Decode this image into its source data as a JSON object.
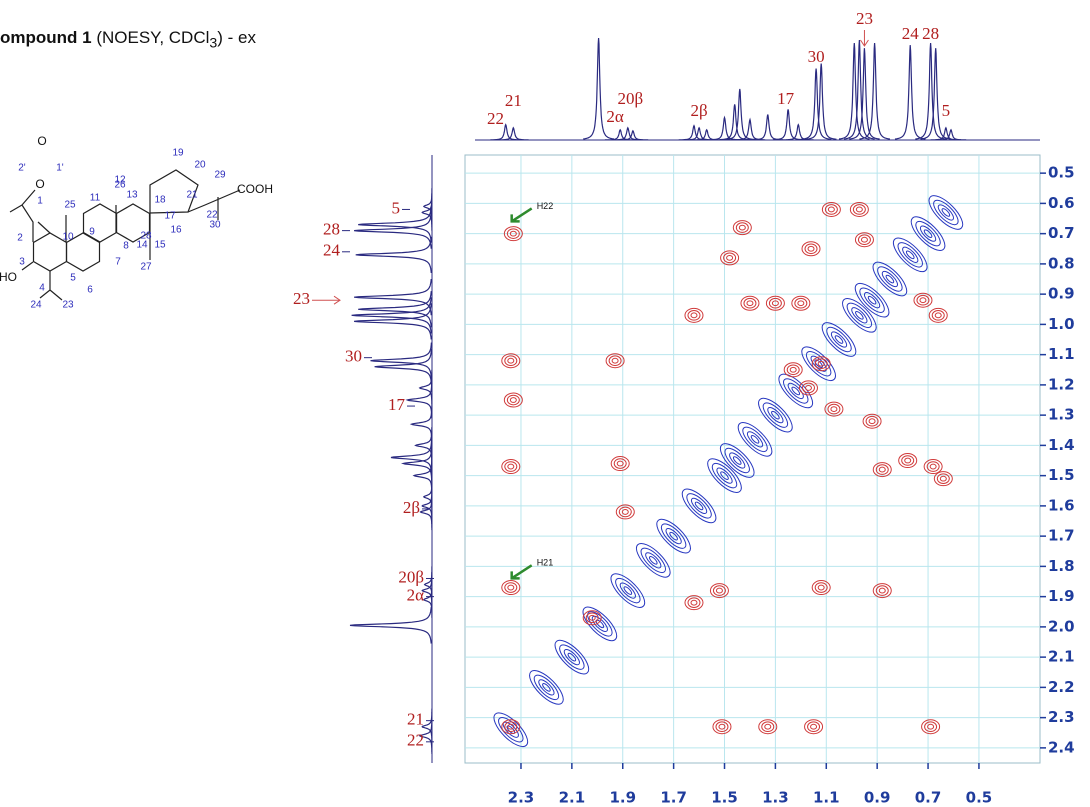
{
  "chart_data": {
    "type": "noesy",
    "title": {
      "prefix": "ompound 1",
      "main": " (NOESY, CDCl",
      "sub": "3",
      "suffix": ") - ex"
    },
    "xlim": [
      2.52,
      0.26
    ],
    "ylim": [
      0.44,
      2.45
    ],
    "xticks": [
      2.3,
      2.1,
      1.9,
      1.7,
      1.5,
      1.3,
      1.1,
      0.9,
      0.7,
      0.5
    ],
    "yticks": [
      0.5,
      0.6,
      0.7,
      0.8,
      0.9,
      {
        "value": 1,
        "label": "1.0"
      },
      1.1,
      1.2,
      1.3,
      1.4,
      1.5,
      1.6,
      1.7,
      1.8,
      1.9,
      {
        "value": 2,
        "label": "2.0"
      },
      2.1,
      2.2,
      2.3,
      2.4
    ],
    "grid": true,
    "projection": {
      "color": "#2a2a80",
      "ppm": [
        2.36,
        2.33,
        1.995,
        1.91,
        1.88,
        1.86,
        1.62,
        1.6,
        1.57,
        1.5,
        1.46,
        1.44,
        1.4,
        1.33,
        1.25,
        1.21,
        1.14,
        1.12,
        0.99,
        0.97,
        0.95,
        0.91,
        0.77,
        0.69,
        0.67,
        0.63,
        0.61
      ],
      "height": [
        15,
        12,
        100,
        10,
        12,
        9,
        14,
        12,
        10,
        22,
        35,
        50,
        20,
        25,
        30,
        15,
        70,
        75,
        95,
        98,
        90,
        95,
        93,
        95,
        90,
        12,
        10
      ]
    },
    "cross_peaks": {
      "color": "#d03a3a",
      "x": [
        2.33,
        2.34,
        2.34,
        2.33,
        2.34,
        2.34,
        1.93,
        1.91,
        1.89,
        1.62,
        1.52,
        1.51,
        1.33,
        1.15,
        1.12,
        1.23,
        1.07,
        1.17,
        1.48,
        1.43,
        1.4,
        1.3,
        1.2,
        1.16,
        0.95,
        0.92,
        0.88,
        0.78,
        0.68,
        0.64,
        0.66,
        0.72,
        0.97,
        1.08,
        1.62,
        0.88,
        1.12,
        0.69,
        2.02
      ],
      "y": [
        0.7,
        1.87,
        1.12,
        1.25,
        1.47,
        2.33,
        1.12,
        1.46,
        1.62,
        1.92,
        1.88,
        2.33,
        2.33,
        2.33,
        1.13,
        1.15,
        1.28,
        1.21,
        0.78,
        0.68,
        0.93,
        0.93,
        0.93,
        0.75,
        0.72,
        1.32,
        1.48,
        1.45,
        1.47,
        1.51,
        0.97,
        0.92,
        0.62,
        0.62,
        0.97,
        1.88,
        1.87,
        2.33,
        1.97
      ]
    },
    "diagonal_peaks": {
      "color": "#2838c0",
      "x": [
        2.34,
        2.2,
        2.1,
        1.99,
        1.88,
        1.78,
        1.7,
        1.6,
        1.5,
        1.45,
        1.38,
        1.3,
        1.22,
        1.13,
        1.05,
        0.97,
        0.92,
        0.85,
        0.77,
        0.7,
        0.63
      ],
      "y": [
        2.34,
        2.2,
        2.1,
        1.99,
        1.88,
        1.78,
        1.7,
        1.6,
        1.5,
        1.45,
        1.38,
        1.3,
        1.22,
        1.13,
        1.05,
        0.97,
        0.92,
        0.85,
        0.77,
        0.7,
        0.63
      ]
    },
    "top_labels": [
      {
        "text": "22",
        "ppm": 2.4
      },
      {
        "text": "21",
        "ppm": 2.33
      },
      {
        "text": "2α",
        "ppm": 1.93
      },
      {
        "text": "20β",
        "ppm": 1.87
      },
      {
        "text": "2β",
        "ppm": 1.6
      },
      {
        "text": "17",
        "ppm": 1.26
      },
      {
        "text": "30",
        "ppm": 1.14
      },
      {
        "text": "23",
        "ppm": 0.95,
        "arrow": true
      },
      {
        "text": "24",
        "ppm": 0.77
      },
      {
        "text": "28",
        "ppm": 0.69
      },
      {
        "text": "5",
        "ppm": 0.63
      }
    ],
    "side_labels": [
      {
        "text": "5",
        "ppm": 0.62
      },
      {
        "text": "28",
        "ppm": 0.69
      },
      {
        "text": "24",
        "ppm": 0.76
      },
      {
        "text": "23",
        "ppm": 0.92,
        "arrow": true
      },
      {
        "text": "30",
        "ppm": 1.11
      },
      {
        "text": "17",
        "ppm": 1.27
      },
      {
        "text": "2β",
        "ppm": 1.61
      },
      {
        "text": "20β",
        "ppm": 1.84
      },
      {
        "text": "2α",
        "ppm": 1.9
      },
      {
        "text": "21",
        "ppm": 2.31
      },
      {
        "text": "22",
        "ppm": 2.38
      }
    ],
    "annotations": [
      {
        "text": "H22",
        "x": 2.25,
        "y": 0.61
      },
      {
        "text": "H21",
        "x": 2.25,
        "y": 1.79
      }
    ],
    "structure_labels": [
      "O",
      "1'",
      "2'",
      "O",
      "1",
      "2",
      "3",
      "HO",
      "4",
      "24",
      "23",
      "5",
      "6",
      "7",
      "25",
      "10",
      "9",
      "11",
      "12",
      "26",
      "8",
      "14",
      "27",
      "15",
      "16",
      "13",
      "18",
      "19",
      "28",
      "17",
      "20",
      "21",
      "22",
      "29",
      "COOH",
      "30"
    ]
  }
}
